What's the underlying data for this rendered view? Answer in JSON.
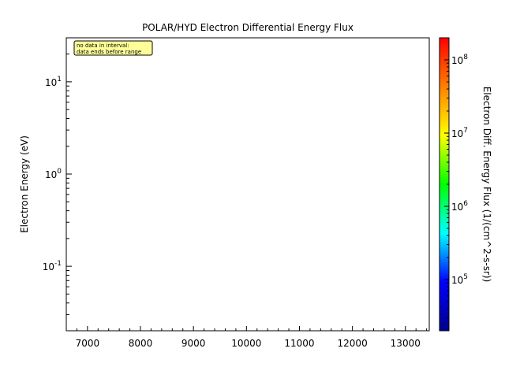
{
  "chart_data": {
    "type": "heatmap",
    "title": "POLAR/HYD  Electron Differential Energy Flux",
    "ylabel": "Electron Energy (eV)",
    "xlabel": "",
    "xlim": [
      6600,
      13450
    ],
    "ylim": [
      0.02,
      30
    ],
    "yscale": "log",
    "xticks": [
      7000,
      8000,
      9000,
      10000,
      11000,
      12000,
      13000
    ],
    "xtick_labels": [
      "7000",
      "8000",
      "9000",
      "10000",
      "11000",
      "12000",
      "13000"
    ],
    "xminor_step": 200,
    "yticks": [
      {
        "value": 0.1,
        "base": "10",
        "exp": "-1"
      },
      {
        "value": 1,
        "base": "10",
        "exp": "0"
      },
      {
        "value": 10,
        "base": "10",
        "exp": "1"
      }
    ],
    "grid": false,
    "values": [],
    "annotation": {
      "lines": [
        "no data in interval:",
        "data ends before range"
      ],
      "fill": "#ffff99",
      "position": "top-left"
    },
    "colorbar": {
      "label": "Electron Diff. Energy Flux (1/(cm^2-s-sr))",
      "scale": "log",
      "range": [
        20000,
        200000000
      ],
      "colormap": [
        "#00008b",
        "#0000ff",
        "#00ffff",
        "#00ff00",
        "#ffff00",
        "#ff8000",
        "#ff0000"
      ],
      "ticks": [
        {
          "value": 100000,
          "base": "10",
          "exp": "5"
        },
        {
          "value": 1000000,
          "base": "10",
          "exp": "6"
        },
        {
          "value": 10000000,
          "base": "10",
          "exp": "7"
        },
        {
          "value": 100000000,
          "base": "10",
          "exp": "8"
        }
      ]
    }
  }
}
